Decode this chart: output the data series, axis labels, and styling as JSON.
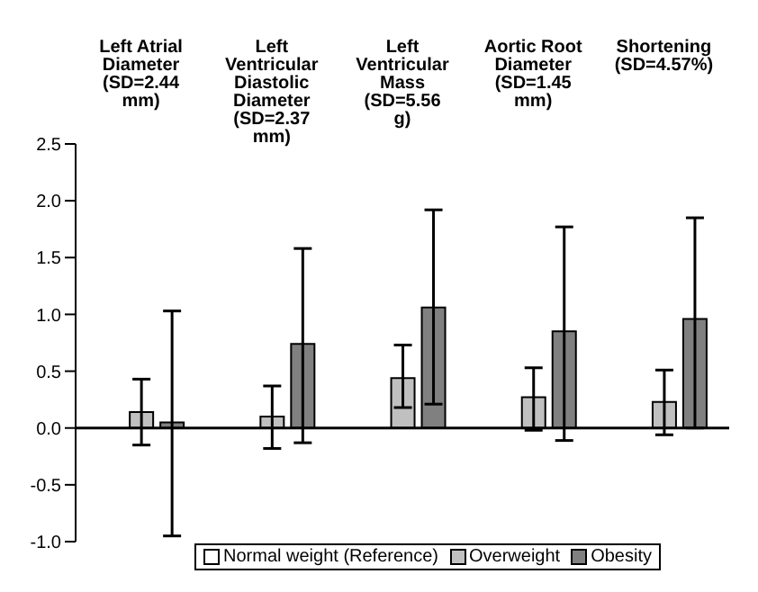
{
  "chart_data": {
    "type": "bar",
    "categories": [
      "Left Atrial Diameter (SD=2.44 mm)",
      "Left Ventricular Diastolic Diameter (SD=2.37 mm)",
      "Left Ventricular Mass (SD=5.56 g)",
      "Aortic Root Diameter (SD=1.45 mm)",
      "Shortening (SD=4.57%)"
    ],
    "series": [
      {
        "name": "Normal weight (Reference)",
        "color": "#ffffff",
        "values": [
          0,
          0,
          0,
          0,
          0
        ]
      },
      {
        "name": "Overweight",
        "color": "#c0c0c0",
        "values": [
          0.14,
          0.1,
          0.44,
          0.27,
          0.23
        ],
        "errors": [
          [
            -0.15,
            0.43
          ],
          [
            -0.18,
            0.37
          ],
          [
            0.18,
            0.73
          ],
          [
            -0.02,
            0.53
          ],
          [
            -0.06,
            0.51
          ]
        ]
      },
      {
        "name": "Obesity",
        "color": "#808080",
        "values": [
          0.05,
          0.74,
          1.06,
          0.85,
          0.96
        ],
        "errors": [
          [
            -0.95,
            1.03
          ],
          [
            -0.13,
            1.58
          ],
          [
            0.21,
            1.92
          ],
          [
            -0.11,
            1.77
          ],
          [
            0.0,
            1.85
          ]
        ]
      }
    ],
    "ylim": [
      -1,
      2.5
    ],
    "yticks": [
      {
        "value": -1,
        "label": "-1.0"
      },
      -0.5,
      {
        "value": 0,
        "label": "0.0"
      },
      0.5,
      {
        "value": 1,
        "label": "1.0"
      },
      1.5,
      {
        "value": 2,
        "label": "2.0"
      },
      2.5
    ],
    "legend": "bottom"
  }
}
